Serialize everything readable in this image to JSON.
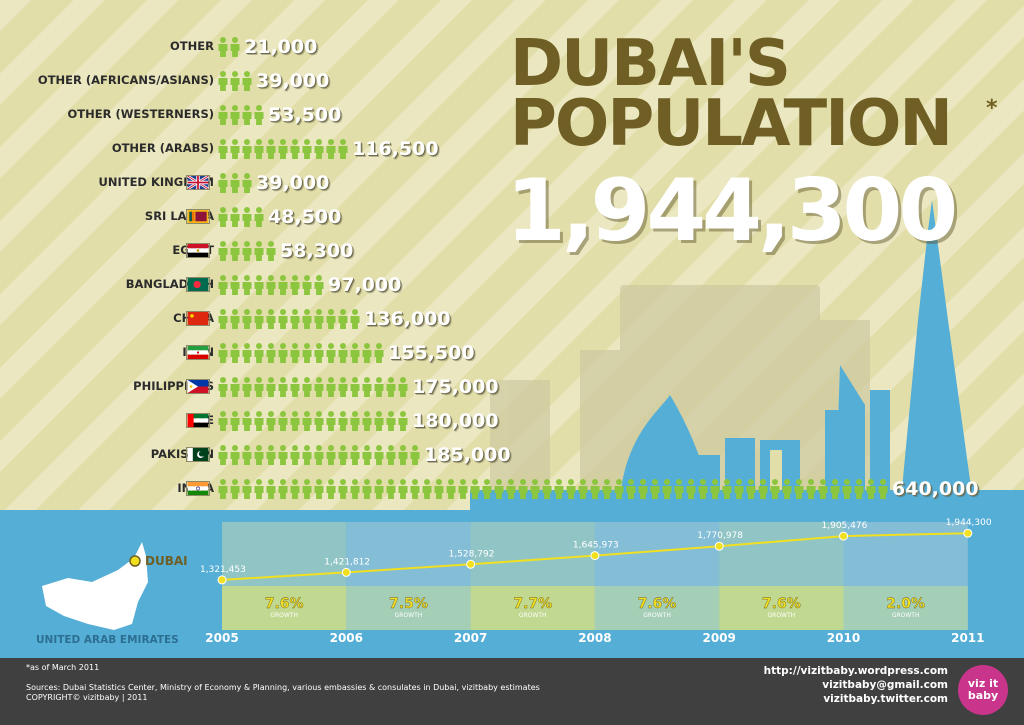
{
  "title": {
    "line1": "DUBAI'S",
    "line2": "POPULATION",
    "asterisk": "*"
  },
  "total": "1,944,300",
  "chart_data": [
    {
      "type": "bar",
      "title": "DUBAI'S POPULATION",
      "orientation": "horizontal",
      "unit_icon": "person-icon",
      "categories": [
        "OTHER",
        "OTHER (AFRICANS/ASIANS)",
        "OTHER (WESTERNERS)",
        "OTHER (ARABS)",
        "UNITED KINGDOM",
        "SRI LANKA",
        "EGYPT",
        "BANGLADESH",
        "CHINA",
        "IRAN",
        "PHILIPPINES",
        "UAE",
        "PAKISTAN",
        "INDIA"
      ],
      "values": [
        21000,
        39000,
        53500,
        116500,
        39000,
        48500,
        58300,
        97000,
        136000,
        155500,
        175000,
        180000,
        185000,
        640000
      ],
      "value_labels": [
        "21,000",
        "39,000",
        "53,500",
        "116,500",
        "39,000",
        "48,500",
        "58,300",
        "97,000",
        "136,000",
        "155,500",
        "175,000",
        "180,000",
        "185,000",
        "640,000"
      ],
      "flags": [
        "",
        "",
        "",
        "",
        "uk",
        "srilanka",
        "egypt",
        "bangladesh",
        "china",
        "iran",
        "philippines",
        "uae",
        "pakistan",
        "india"
      ],
      "icon_counts": [
        2,
        3,
        4,
        11,
        3,
        4,
        5,
        9,
        12,
        14,
        16,
        16,
        17,
        56
      ]
    },
    {
      "type": "line",
      "title": "",
      "x": [
        "2005",
        "2006",
        "2007",
        "2008",
        "2009",
        "2010",
        "2011"
      ],
      "y": [
        1321453,
        1421812,
        1528792,
        1645973,
        1770978,
        1905476,
        1944300
      ],
      "point_labels": [
        "1,321,453",
        "1,421,812",
        "1,528,792",
        "1,645,973",
        "1,770,978",
        "1,905,476",
        "1,944,300"
      ],
      "ylim": [
        1000000,
        2200000
      ],
      "growth_labels": [
        "7.6%",
        "7.5%",
        "7.7%",
        "7.6%",
        "7.6%",
        "2.0%"
      ],
      "growth_caption": "GROWTH"
    }
  ],
  "map": {
    "country": "UNITED ARAB EMIRATES",
    "city": "DUBAI"
  },
  "footer": {
    "note": "*as of March 2011",
    "sources": "Sources: Dubai Statistics Center, Ministry of Economy & Planning, various embassies & consulates in Dubai, vizitbaby estimates",
    "copyright": "COPYRIGHT© vizitbaby | 2011",
    "links": [
      "http://vizitbaby.wordpress.com",
      "vizitbaby@gmail.com",
      "vizitbaby.twitter.com"
    ],
    "logo": "viz it baby"
  },
  "colors": {
    "olive_title": "#6f5f24",
    "person_green": "#8cc63f",
    "sky_blue": "#55aed6",
    "line_yellow": "#f0e020",
    "footer": "#404040",
    "logo_pink": "#c9358b"
  }
}
